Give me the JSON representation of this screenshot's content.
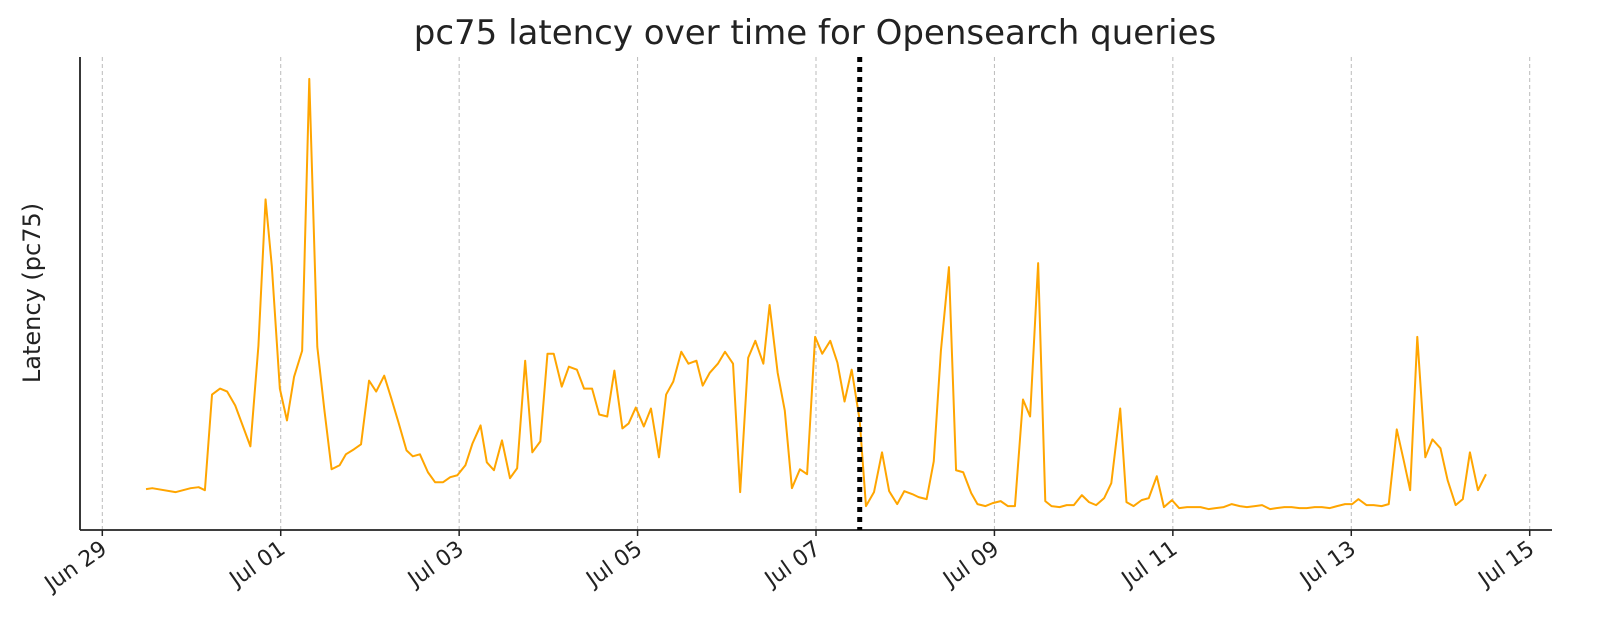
{
  "chart_data": {
    "type": "line",
    "title": "pc75 latency over time for Opensearch queries",
    "y_label": "Latency (pc75)",
    "color": "#ffa500",
    "grid": true,
    "vline": {
      "x": 8.49,
      "color": "#000000",
      "style": "dotted"
    },
    "xlim": [
      -0.25,
      16.25
    ],
    "ylim": [
      0,
      475
    ],
    "xticks": [
      {
        "value": 0,
        "label": "Jun 29"
      },
      {
        "value": 2,
        "label": "Jul 01"
      },
      {
        "value": 4,
        "label": "Jul 03"
      },
      {
        "value": 6,
        "label": "Jul 05"
      },
      {
        "value": 8,
        "label": "Jul 07"
      },
      {
        "value": 10,
        "label": "Jul 09"
      },
      {
        "value": 12,
        "label": "Jul 11"
      },
      {
        "value": 14,
        "label": "Jul 13"
      },
      {
        "value": 16,
        "label": "Jul 15"
      }
    ],
    "x": [
      0.49,
      0.56,
      0.82,
      0.99,
      1.08,
      1.15,
      1.23,
      1.32,
      1.4,
      1.49,
      1.66,
      1.75,
      1.83,
      1.9,
      1.99,
      2.07,
      2.15,
      2.24,
      2.32,
      2.41,
      2.49,
      2.57,
      2.66,
      2.73,
      2.82,
      2.9,
      2.99,
      3.07,
      3.16,
      3.24,
      3.32,
      3.41,
      3.48,
      3.56,
      3.65,
      3.73,
      3.82,
      3.9,
      3.98,
      4.07,
      4.15,
      4.24,
      4.31,
      4.39,
      4.48,
      4.57,
      4.65,
      4.74,
      4.82,
      4.91,
      4.99,
      5.06,
      5.15,
      5.23,
      5.32,
      5.4,
      5.49,
      5.57,
      5.66,
      5.74,
      5.83,
      5.9,
      5.98,
      6.07,
      6.15,
      6.24,
      6.32,
      6.4,
      6.49,
      6.57,
      6.66,
      6.73,
      6.81,
      6.9,
      6.98,
      7.07,
      7.15,
      7.24,
      7.32,
      7.41,
      7.48,
      7.57,
      7.65,
      7.73,
      7.82,
      7.9,
      7.99,
      8.07,
      8.16,
      8.24,
      8.32,
      8.4,
      8.49,
      8.56,
      8.65,
      8.74,
      8.82,
      8.91,
      8.99,
      9.08,
      9.15,
      9.24,
      9.32,
      9.4,
      9.49,
      9.57,
      9.65,
      9.74,
      9.81,
      9.9,
      9.98,
      10.07,
      10.15,
      10.23,
      10.32,
      10.4,
      10.49,
      10.57,
      10.64,
      10.73,
      10.81,
      10.89,
      10.98,
      11.06,
      11.14,
      11.23,
      11.31,
      11.41,
      11.48,
      11.56,
      11.65,
      11.73,
      11.82,
      11.9,
      11.99,
      12.07,
      12.16,
      12.24,
      12.31,
      12.4,
      12.48,
      12.57,
      12.66,
      12.75,
      12.83,
      12.92,
      13.0,
      13.09,
      13.16,
      13.25,
      13.33,
      13.42,
      13.5,
      13.59,
      13.67,
      13.76,
      13.84,
      13.93,
      14.01,
      14.08,
      14.17,
      14.25,
      14.34,
      14.42,
      14.51,
      14.59,
      14.66,
      14.74,
      14.83,
      14.91,
      15.0,
      15.08,
      15.17,
      15.25,
      15.33,
      15.42,
      15.51
    ],
    "values": [
      41,
      42,
      38,
      42,
      43,
      40,
      136,
      142,
      139,
      125,
      84,
      185,
      332,
      265,
      142,
      110,
      154,
      180,
      453,
      184,
      120,
      61,
      65,
      76,
      81,
      86,
      150,
      139,
      155,
      132,
      108,
      80,
      74,
      76,
      58,
      48,
      48,
      53,
      55,
      65,
      87,
      105,
      68,
      60,
      90,
      52,
      62,
      170,
      78,
      89,
      177,
      177,
      144,
      164,
      161,
      142,
      142,
      116,
      114,
      160,
      102,
      107,
      123,
      104,
      122,
      73,
      136,
      149,
      179,
      167,
      170,
      145,
      158,
      167,
      179,
      167,
      38,
      173,
      190,
      167,
      226,
      158,
      120,
      42,
      61,
      56,
      194,
      177,
      190,
      168,
      129,
      161,
      110,
      24,
      38,
      78,
      39,
      26,
      39,
      36,
      33,
      31,
      69,
      180,
      264,
      60,
      58,
      37,
      26,
      24,
      27,
      29,
      24,
      24,
      131,
      114,
      268,
      29,
      24,
      23,
      25,
      25,
      35,
      28,
      25,
      32,
      47,
      122,
      28,
      24,
      30,
      32,
      54,
      23,
      30,
      22,
      23,
      23,
      23,
      21,
      22,
      23,
      26,
      24,
      23,
      24,
      25,
      21,
      22,
      23,
      23,
      22,
      22,
      23,
      23,
      22,
      24,
      26,
      26,
      31,
      25,
      25,
      24,
      26,
      101,
      69,
      40,
      194,
      73,
      91,
      82,
      50,
      25,
      31,
      78,
      40,
      56
    ]
  }
}
